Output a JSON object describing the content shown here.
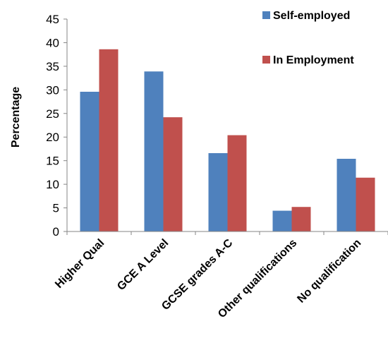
{
  "chart_data": {
    "type": "bar",
    "categories": [
      "Higher Qual",
      "GCE A Level",
      "GCSE grades A-C",
      "Other qualifications",
      "No qualification"
    ],
    "series": [
      {
        "name": "Self-employed",
        "color": "#4F81BD",
        "values": [
          29.6,
          33.9,
          16.6,
          4.4,
          15.4
        ]
      },
      {
        "name": "In Employment",
        "color": "#C0504D",
        "values": [
          38.6,
          24.2,
          20.4,
          5.2,
          11.4
        ]
      }
    ],
    "ylabel": "Percentage",
    "xlabel": "",
    "ylim": [
      0,
      45
    ],
    "yticks": [
      0,
      5,
      10,
      15,
      20,
      25,
      30,
      35,
      40,
      45
    ],
    "grid": false,
    "legend": "top-right"
  }
}
